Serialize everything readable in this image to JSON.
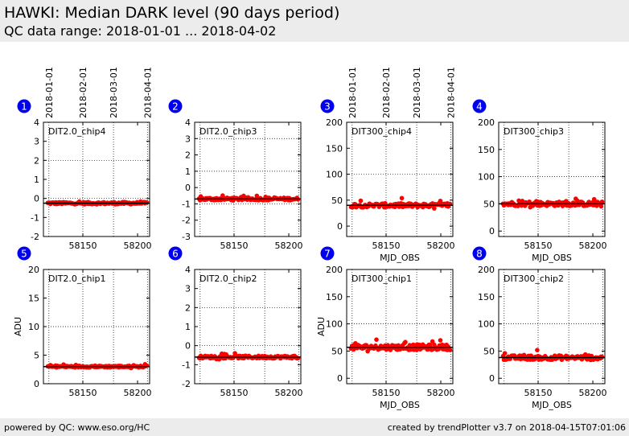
{
  "header": {
    "title": "HAWKI: Median DARK level (90 days period)",
    "subtitle": "QC data range: 2018-01-01 ... 2018-04-02"
  },
  "footer": {
    "left": "powered by QC: www.eso.org/HC",
    "right": "created by trendPlotter v3.7 on 2018-04-15T07:01:06"
  },
  "top_date_labels": [
    "2018-01-01",
    "2018-02-01",
    "2018-03-01",
    "2018-04-01"
  ],
  "colors": {
    "point": "#ff0000",
    "median": "#000000",
    "badge": "#0000ee"
  },
  "chart_data": [
    {
      "type": "scatter",
      "badge": "1",
      "label": "DIT2.0_chip4",
      "xlabel": "",
      "ylabel": "",
      "xlim": [
        58114,
        58211
      ],
      "ylim": [
        -2,
        4
      ],
      "yticks": [
        -2,
        -1,
        0,
        1,
        2,
        3,
        4
      ],
      "xticks": [
        58150,
        58200
      ],
      "median": -0.25,
      "base": -0.25,
      "spread": 0.06,
      "grid": true
    },
    {
      "type": "scatter",
      "badge": "2",
      "label": "DIT2.0_chip3",
      "xlabel": "",
      "ylabel": "",
      "xlim": [
        58114,
        58211
      ],
      "ylim": [
        -3,
        4
      ],
      "yticks": [
        -3,
        -2,
        -1,
        0,
        1,
        2,
        3,
        4
      ],
      "xticks": [
        58150,
        58200
      ],
      "median": -0.7,
      "base": -0.7,
      "spread": 0.08,
      "grid": true
    },
    {
      "type": "scatter",
      "badge": "3",
      "label": "DIT300_chip4",
      "xlabel": "MJD_OBS",
      "ylabel": "",
      "xlim": [
        58114,
        58211
      ],
      "ylim": [
        -20,
        200
      ],
      "yticks": [
        0,
        50,
        100,
        150,
        200
      ],
      "xticks": [
        58150,
        58200
      ],
      "median": 40,
      "base": 40,
      "spread": 4,
      "grid": true
    },
    {
      "type": "scatter",
      "badge": "4",
      "label": "DIT300_chip3",
      "xlabel": "MJD_OBS",
      "ylabel": "",
      "xlim": [
        58114,
        58211
      ],
      "ylim": [
        -10,
        200
      ],
      "yticks": [
        0,
        50,
        100,
        150,
        200
      ],
      "xticks": [
        58150,
        58200
      ],
      "median": 50,
      "base": 50,
      "spread": 4,
      "grid": true
    },
    {
      "type": "scatter",
      "badge": "5",
      "label": "DIT2.0_chip1",
      "xlabel": "",
      "ylabel": "ADU",
      "xlim": [
        58114,
        58211
      ],
      "ylim": [
        0,
        20
      ],
      "yticks": [
        0,
        5,
        10,
        15,
        20
      ],
      "xticks": [
        58150,
        58200
      ],
      "median": 3.0,
      "base": 3.0,
      "spread": 0.15,
      "grid": true
    },
    {
      "type": "scatter",
      "badge": "6",
      "label": "DIT2.0_chip2",
      "xlabel": "",
      "ylabel": "",
      "xlim": [
        58114,
        58211
      ],
      "ylim": [
        -2,
        4
      ],
      "yticks": [
        -2,
        -1,
        0,
        1,
        2,
        3,
        4
      ],
      "xticks": [
        58150,
        58200
      ],
      "median": -0.6,
      "base": -0.6,
      "spread": 0.07,
      "grid": true
    },
    {
      "type": "scatter",
      "badge": "7",
      "label": "DIT300_chip1",
      "xlabel": "MJD_OBS",
      "ylabel": "ADU",
      "xlim": [
        58114,
        58211
      ],
      "ylim": [
        -10,
        200
      ],
      "yticks": [
        0,
        50,
        100,
        150,
        200
      ],
      "xticks": [
        58150,
        58200
      ],
      "median": 57,
      "base": 57,
      "spread": 5,
      "grid": true
    },
    {
      "type": "scatter",
      "badge": "8",
      "label": "DIT300_chip2",
      "xlabel": "MJD_OBS",
      "ylabel": "",
      "xlim": [
        58114,
        58211
      ],
      "ylim": [
        -10,
        200
      ],
      "yticks": [
        0,
        50,
        100,
        150,
        200
      ],
      "xticks": [
        58150,
        58200
      ],
      "median": 38,
      "base": 38,
      "spread": 4,
      "grid": true
    }
  ]
}
